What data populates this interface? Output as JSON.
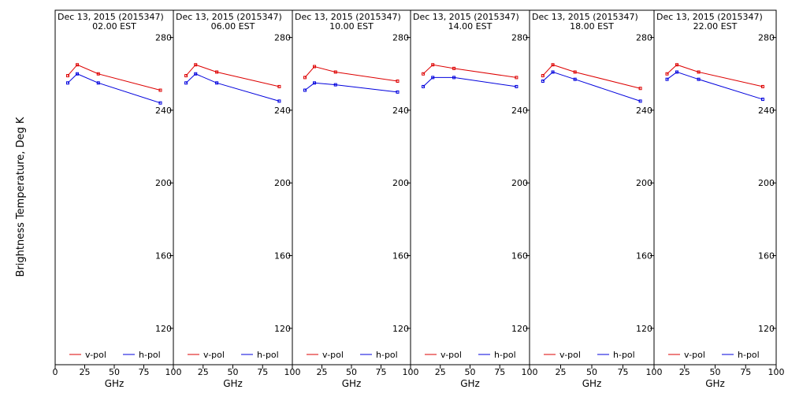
{
  "ylabel": "Brightness Temperature, Deg K",
  "xlabel": "GHz",
  "chart_data": {
    "type": "line",
    "xlim": [
      0,
      100
    ],
    "ylim": [
      100,
      295
    ],
    "grid": false,
    "legend_placement": "bottom",
    "x_ticks": [
      0,
      25,
      50,
      75,
      100
    ],
    "x_tick_labels": [
      "0",
      "25",
      "50",
      "75",
      "100"
    ],
    "y_ticks": [
      120,
      160,
      200,
      240,
      280
    ],
    "y_tick_labels": [
      "120",
      "160",
      "200",
      "240",
      "280"
    ],
    "x": [
      10.65,
      18.7,
      36.5,
      89.0
    ],
    "series_style": [
      {
        "name": "v-pol",
        "color": "#dd0000"
      },
      {
        "name": "h-pol",
        "color": "#0000dd"
      }
    ],
    "panels": [
      {
        "title": "Dec 13, 2015 (2015347)",
        "subtitle": "02.00 EST",
        "series": [
          {
            "name": "v-pol",
            "values": [
              259,
              265,
              260,
              251
            ]
          },
          {
            "name": "h-pol",
            "values": [
              255,
              260,
              255,
              244
            ]
          }
        ]
      },
      {
        "title": "Dec 13, 2015 (2015347)",
        "subtitle": "06.00 EST",
        "series": [
          {
            "name": "v-pol",
            "values": [
              259,
              265,
              261,
              253
            ]
          },
          {
            "name": "h-pol",
            "values": [
              255,
              260,
              255,
              245
            ]
          }
        ]
      },
      {
        "title": "Dec 13, 2015 (2015347)",
        "subtitle": "10.00 EST",
        "series": [
          {
            "name": "v-pol",
            "values": [
              258,
              264,
              261,
              256
            ]
          },
          {
            "name": "h-pol",
            "values": [
              251,
              255,
              254,
              250
            ]
          }
        ]
      },
      {
        "title": "Dec 13, 2015 (2015347)",
        "subtitle": "14.00 EST",
        "series": [
          {
            "name": "v-pol",
            "values": [
              260,
              265,
              263,
              258
            ]
          },
          {
            "name": "h-pol",
            "values": [
              253,
              258,
              258,
              253
            ]
          }
        ]
      },
      {
        "title": "Dec 13, 2015 (2015347)",
        "subtitle": "18.00 EST",
        "series": [
          {
            "name": "v-pol",
            "values": [
              259,
              265,
              261,
              252
            ]
          },
          {
            "name": "h-pol",
            "values": [
              256,
              261,
              257,
              245
            ]
          }
        ]
      },
      {
        "title": "Dec 13, 2015 (2015347)",
        "subtitle": "22.00 EST",
        "series": [
          {
            "name": "v-pol",
            "values": [
              260,
              265,
              261,
              253
            ]
          },
          {
            "name": "h-pol",
            "values": [
              257,
              261,
              257,
              246
            ]
          }
        ]
      }
    ]
  }
}
